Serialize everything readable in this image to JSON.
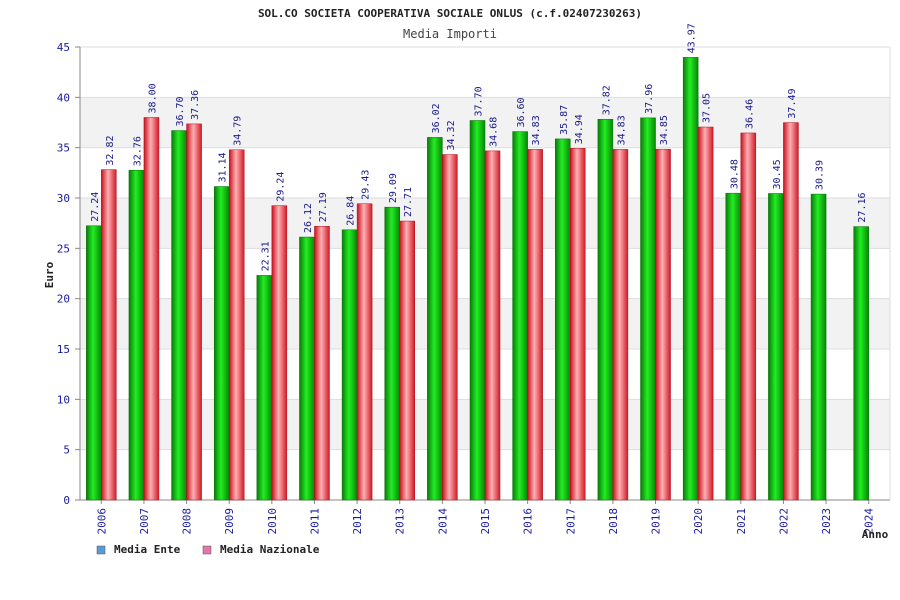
{
  "chart_data": {
    "type": "bar",
    "title": "SOL.CO SOCIETA COOPERATIVA SOCIALE ONLUS (c.f.02407230263)",
    "subtitle": "Media Importi",
    "xlabel": "Anno",
    "ylabel": "Euro",
    "ylim": [
      0,
      45
    ],
    "yticks": [
      0,
      5,
      10,
      15,
      20,
      25,
      30,
      35,
      40,
      45
    ],
    "grid": true,
    "legend_position": "bottom-left",
    "categories": [
      "2006",
      "2007",
      "2008",
      "2009",
      "2010",
      "2011",
      "2012",
      "2013",
      "2014",
      "2015",
      "2016",
      "2017",
      "2018",
      "2019",
      "2020",
      "2021",
      "2022",
      "2023",
      "2024"
    ],
    "series": [
      {
        "name": "Media Ente",
        "color": "#00b400",
        "legend_color": "#5b9bd5",
        "values": [
          27.24,
          32.76,
          36.7,
          31.14,
          22.31,
          26.12,
          26.84,
          29.09,
          36.02,
          37.7,
          36.6,
          35.87,
          37.82,
          37.96,
          43.97,
          30.48,
          30.45,
          30.39,
          27.16
        ],
        "labels": [
          "27.24",
          "32.76",
          "36.70",
          "31.14",
          "22.31",
          "26.12",
          "26.84",
          "29.09",
          "36.02",
          "37.70",
          "36.60",
          "35.87",
          "37.82",
          "37.96",
          "43.97",
          "30.48",
          "30.45",
          "30.39",
          "27.16"
        ]
      },
      {
        "name": "Media Nazionale",
        "color": "#e8303c",
        "legend_color": "#e377a8",
        "values": [
          32.82,
          38.0,
          37.36,
          34.79,
          29.24,
          27.19,
          29.43,
          27.71,
          34.32,
          34.68,
          34.83,
          34.94,
          34.83,
          34.85,
          37.05,
          36.46,
          37.49,
          null,
          null
        ],
        "labels": [
          "32.82",
          "38.00",
          "37.36",
          "34.79",
          "29.24",
          "27.19",
          "29.43",
          "27.71",
          "34.32",
          "34.68",
          "34.83",
          "34.94",
          "34.83",
          "34.85",
          "37.05",
          "36.46",
          "37.49",
          null,
          null
        ]
      }
    ]
  }
}
